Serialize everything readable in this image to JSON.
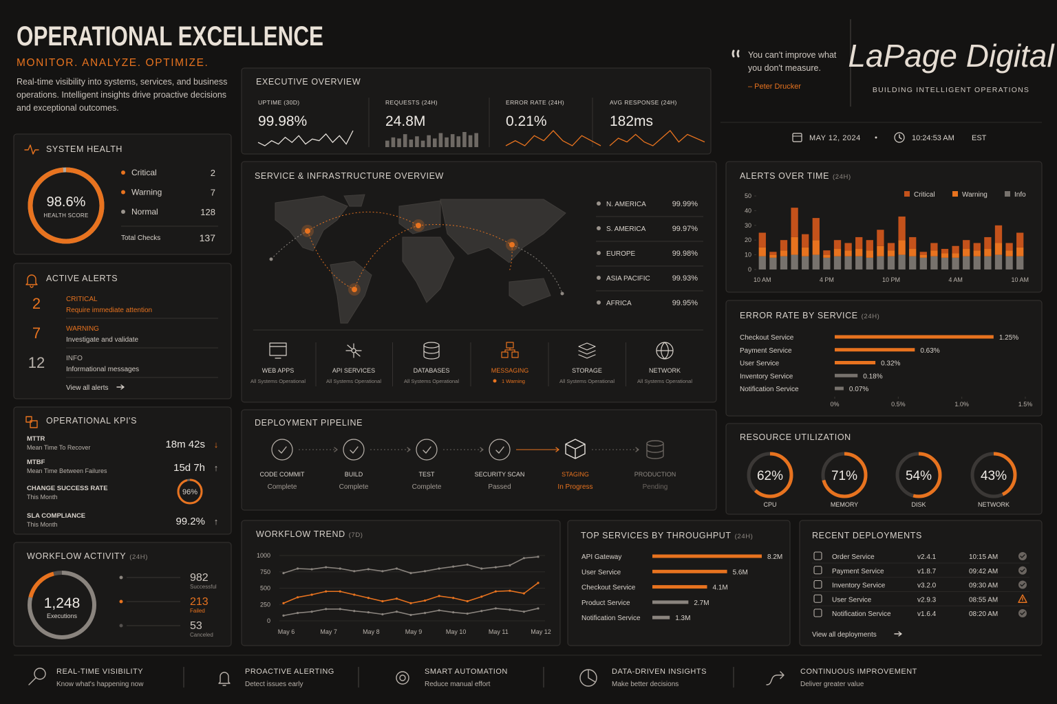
{
  "header": {
    "title": "OPERATIONAL EXCELLENCE",
    "tagline": "MONITOR. ANALYZE. OPTIMIZE.",
    "description": [
      "Real-time visibility into systems, services, and business",
      "operations. Intelligent insights drive proactive decisions",
      "and exceptional outcomes."
    ]
  },
  "quote": {
    "lines": [
      "You can't improve what",
      "you don't measure."
    ],
    "author": "– Peter Drucker"
  },
  "brand": {
    "name": "LaPage Digital",
    "tagline": "BUILDING INTELLIGENT OPERATIONS"
  },
  "datetime": {
    "date": "MAY 12, 2024",
    "time": "10:24:53 AM",
    "zone": "EST"
  },
  "executive_overview": {
    "title": "EXECUTIVE OVERVIEW",
    "kpis": [
      {
        "label": "UPTIME (30D)",
        "value": "99.98%",
        "trend": {
          "type": "line",
          "color": "#e6e1db",
          "values": [
            5,
            3,
            6,
            4,
            8,
            5,
            9,
            4,
            7,
            6,
            10,
            5,
            9,
            4,
            12
          ]
        }
      },
      {
        "label": "REQUESTS (24H)",
        "value": "24.8M",
        "trend": {
          "type": "bar",
          "color": "#6e6964",
          "values": [
            6,
            9,
            8,
            12,
            7,
            10,
            6,
            11,
            8,
            13,
            9,
            12,
            10,
            14,
            11,
            13
          ]
        }
      },
      {
        "label": "ERROR RATE (24H)",
        "value": "0.21%",
        "trend": {
          "type": "line",
          "color": "#e8731f",
          "values": [
            5,
            6,
            5,
            7,
            6,
            8,
            6,
            5,
            7,
            6,
            5
          ]
        }
      },
      {
        "label": "AVG RESPONSE (24H)",
        "value": "182ms",
        "trend": {
          "type": "line",
          "color": "#e8731f",
          "values": [
            4,
            6,
            5,
            7,
            5,
            4,
            6,
            8,
            5,
            7,
            6,
            5
          ]
        }
      }
    ]
  },
  "system_health": {
    "title": "SYSTEM HEALTH",
    "score": {
      "value": 98.6,
      "label": "98.6%"
    },
    "score_caption": "HEALTH SCORE",
    "color": "#e8731f",
    "items": [
      {
        "name": "Critical",
        "value": 2,
        "color": "#e8731f"
      },
      {
        "name": "Warning",
        "value": 7,
        "color": "#e8731f"
      },
      {
        "name": "Normal",
        "value": 128,
        "color": "#9a938c"
      }
    ],
    "total_label": "Total Checks",
    "total": 137
  },
  "active_alerts": {
    "title": "ACTIVE ALERTS",
    "items": [
      {
        "count": 2,
        "level": "CRITICAL",
        "description": "Require immediate attention",
        "color": "#e8731f",
        "description_color": "#e8731f"
      },
      {
        "count": 7,
        "level": "WARNING",
        "description": "Investigate and validate",
        "color": "#e8731f",
        "description_color": "#cfc8c1"
      },
      {
        "count": 12,
        "level": "INFO",
        "description": "Informational messages",
        "color": "#b9b2ab",
        "description_color": "#cfc8c1"
      }
    ],
    "link": "View all alerts"
  },
  "operational_kpis": {
    "title": "OPERATIONAL KPI'S",
    "items": [
      {
        "name": "MTTR",
        "caption": "Mean Time To Recover",
        "value": "18m 42s",
        "trend": "↓",
        "trend_color": "#e8731f"
      },
      {
        "name": "MTBF",
        "caption": "Mean Time Between Failures",
        "value": "15d 7h",
        "trend": "↑",
        "trend_color": "#b9b2ab"
      },
      {
        "name": "CHANGE SUCCESS RATE",
        "caption": "This Month",
        "gauge": {
          "value": 96,
          "label": "96%"
        }
      },
      {
        "name": "SLA COMPLIANCE",
        "caption": "This Month",
        "value": "99.2%",
        "trend": "↑",
        "trend_color": "#b9b2ab"
      }
    ]
  },
  "workflow_activity": {
    "title": "WORKFLOW ACTIVITY",
    "period": "(24H)",
    "total": "1,248",
    "total_caption": "Executions",
    "items": [
      {
        "value": 982,
        "label": "Successful",
        "color": "#8a847e"
      },
      {
        "value": 213,
        "label": "Failed",
        "color": "#e8731f"
      },
      {
        "value": 53,
        "label": "Canceled",
        "color": "#55514e"
      }
    ]
  },
  "infrastructure": {
    "title": "SERVICE & INFRASTRUCTURE OVERVIEW",
    "regions": [
      {
        "name": "N. AMERICA",
        "value": "99.99%"
      },
      {
        "name": "S. AMERICA",
        "value": "99.97%"
      },
      {
        "name": "EUROPE",
        "value": "99.98%"
      },
      {
        "name": "ASIA PACIFIC",
        "value": "99.93%"
      },
      {
        "name": "AFRICA",
        "value": "99.95%"
      }
    ],
    "services": [
      {
        "name": "WEB APPS",
        "status": "All Systems Operational"
      },
      {
        "name": "API SERVICES",
        "status": "All Systems Operational"
      },
      {
        "name": "DATABASES",
        "status": "All Systems Operational"
      },
      {
        "name": "MESSAGING",
        "status": "1 Warning",
        "highlight": true
      },
      {
        "name": "STORAGE",
        "status": "All Systems Operational"
      },
      {
        "name": "NETWORK",
        "status": "All Systems Operational"
      }
    ]
  },
  "pipeline": {
    "title": "DEPLOYMENT PIPELINE",
    "stages": [
      {
        "name": "CODE COMMIT",
        "status": "Complete"
      },
      {
        "name": "BUILD",
        "status": "Complete"
      },
      {
        "name": "TEST",
        "status": "Complete"
      },
      {
        "name": "SECURITY SCAN",
        "status": "Passed"
      },
      {
        "name": "STAGING",
        "status": "In Progress",
        "highlight": true
      },
      {
        "name": "PRODUCTION",
        "status": "Pending",
        "muted": true
      }
    ]
  },
  "resource_utilization": {
    "title": "RESOURCE UTILIZATION",
    "gauges": [
      {
        "name": "CPU",
        "value": 62,
        "label": "62%"
      },
      {
        "name": "MEMORY",
        "value": 71,
        "label": "71%"
      },
      {
        "name": "DISK",
        "value": 54,
        "label": "54%"
      },
      {
        "name": "NETWORK",
        "value": 43,
        "label": "43%"
      }
    ]
  },
  "chart_data": [
    {
      "type": "bar",
      "stacked": true,
      "title": "ALERTS OVER TIME",
      "period": "(24H)",
      "categories": [
        "10 AM",
        null,
        null,
        null,
        null,
        null,
        "4 PM",
        null,
        null,
        null,
        null,
        null,
        "10 PM",
        null,
        null,
        null,
        null,
        null,
        "4 AM",
        null,
        null,
        null,
        null,
        null,
        "10 AM"
      ],
      "series": [
        {
          "name": "Critical",
          "color": "#c4521b",
          "values": [
            10,
            2,
            7,
            20,
            9,
            15,
            3,
            6,
            5,
            8,
            7,
            11,
            5,
            16,
            8,
            2,
            5,
            3,
            5,
            6,
            5,
            8,
            12,
            5,
            10
          ]
        },
        {
          "name": "Warning",
          "color": "#e8731f",
          "values": [
            6,
            2,
            4,
            12,
            6,
            10,
            2,
            5,
            4,
            5,
            5,
            7,
            4,
            10,
            5,
            2,
            4,
            3,
            3,
            5,
            4,
            5,
            8,
            4,
            6
          ]
        },
        {
          "name": "Info",
          "color": "#77726d",
          "values": [
            9,
            8,
            9,
            10,
            9,
            10,
            8,
            9,
            9,
            9,
            8,
            9,
            9,
            10,
            9,
            8,
            9,
            8,
            8,
            9,
            9,
            9,
            10,
            9,
            9
          ]
        }
      ],
      "ylim": [
        0,
        50
      ],
      "yticks": [
        0,
        10,
        20,
        30,
        40,
        50
      ]
    },
    {
      "type": "bar",
      "orientation": "horizontal",
      "title": "ERROR RATE BY SERVICE",
      "period": "(24H)",
      "categories": [
        "Checkout Service",
        "Payment Service",
        "User Service",
        "Inventory Service",
        "Notification Service"
      ],
      "values": [
        1.25,
        0.63,
        0.32,
        0.18,
        0.07
      ],
      "value_labels": [
        "1.25%",
        "0.63%",
        "0.32%",
        "0.18%",
        "0.07%"
      ],
      "colors": [
        "#e8731f",
        "#e8731f",
        "#e8731f",
        "#77726d",
        "#77726d"
      ],
      "xlim": [
        0,
        1.5
      ],
      "xticks": [
        {
          "value": 0,
          "label": "0%"
        },
        {
          "value": 0.5,
          "label": "0.5%"
        },
        {
          "value": 1.0,
          "label": "1.0%"
        },
        {
          "value": 1.5,
          "label": "1.5%"
        }
      ]
    },
    {
      "type": "line",
      "title": "WORKFLOW TREND",
      "period": "(7D)",
      "categories": [
        "May 6",
        null,
        null,
        "May 7",
        null,
        null,
        "May 8",
        null,
        null,
        "May 9",
        null,
        null,
        "May 10",
        null,
        null,
        "May 11",
        null,
        null,
        "May 12"
      ],
      "series": [
        {
          "color": "#8a847e",
          "values": [
            730,
            800,
            790,
            820,
            800,
            760,
            790,
            760,
            800,
            730,
            760,
            800,
            830,
            860,
            800,
            820,
            850,
            960,
            980
          ]
        },
        {
          "color": "#e8731f",
          "values": [
            270,
            360,
            400,
            450,
            450,
            400,
            350,
            300,
            340,
            270,
            310,
            380,
            350,
            300,
            370,
            450,
            460,
            420,
            580
          ]
        },
        {
          "color": "#8a847e",
          "values": [
            80,
            120,
            140,
            180,
            180,
            150,
            130,
            100,
            140,
            90,
            120,
            160,
            130,
            110,
            150,
            190,
            170,
            140,
            190
          ]
        }
      ],
      "ylim": [
        0,
        1000
      ],
      "yticks": [
        0,
        250,
        500,
        750,
        1000
      ],
      "grid": true
    },
    {
      "type": "bar",
      "orientation": "horizontal",
      "title": "TOP SERVICES BY THROUGHPUT",
      "period": "(24H)",
      "categories": [
        "API Gateway",
        "User Service",
        "Checkout Service",
        "Product Service",
        "Notification Service"
      ],
      "values": [
        8.2,
        5.6,
        4.1,
        2.7,
        1.3
      ],
      "value_labels": [
        "8.2M",
        "5.6M",
        "4.1M",
        "2.7M",
        "1.3M"
      ],
      "colors": [
        "#e8731f",
        "#e8731f",
        "#e8731f",
        "#8a847e",
        "#8a847e"
      ]
    }
  ],
  "recent_deployments": {
    "title": "RECENT DEPLOYMENTS",
    "rows": [
      {
        "service": "Order Service",
        "version": "v2.4.1",
        "time": "10:15 AM"
      },
      {
        "service": "Payment Service",
        "version": "v1.8.7",
        "time": "09:42 AM"
      },
      {
        "service": "Inventory Service",
        "version": "v3.2.0",
        "time": "09:30 AM"
      },
      {
        "service": "User Service",
        "version": "v2.9.3",
        "time": "08:55 AM",
        "warning": true
      },
      {
        "service": "Notification Service",
        "version": "v1.6.4",
        "time": "08:20 AM"
      }
    ],
    "link": "View all deployments"
  },
  "footer": [
    {
      "title": "REAL-TIME VISIBILITY",
      "subtitle": "Know what's happening now"
    },
    {
      "title": "PROACTIVE ALERTING",
      "subtitle": "Detect issues early"
    },
    {
      "title": "SMART AUTOMATION",
      "subtitle": "Reduce manual effort"
    },
    {
      "title": "DATA-DRIVEN INSIGHTS",
      "subtitle": "Make better decisions"
    },
    {
      "title": "CONTINUOUS IMPROVEMENT",
      "subtitle": "Deliver greater value"
    }
  ]
}
